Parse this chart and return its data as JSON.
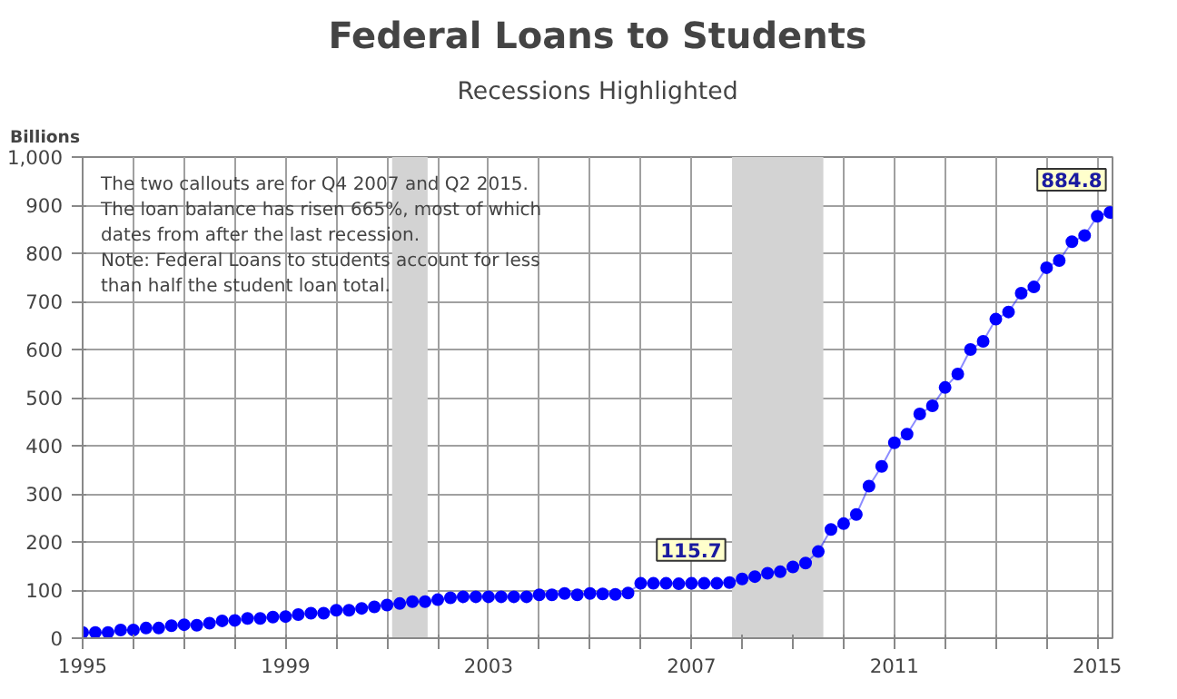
{
  "chart_data": {
    "type": "line",
    "title": "Federal Loans to Students",
    "subtitle": "Recessions Highlighted",
    "ylabel": "Billions",
    "annotations": [
      "The two callouts are for Q4 2007 and Q2 2015.\nThe loan balance has risen 665%, most of which\ndates from after the last recession.\nNote: Federal Loans to students account for less\nthan half the student loan total."
    ],
    "x": [
      1995.0,
      1995.25,
      1995.5,
      1995.75,
      1996.0,
      1996.25,
      1996.5,
      1996.75,
      1997.0,
      1997.25,
      1997.5,
      1997.75,
      1998.0,
      1998.25,
      1998.5,
      1998.75,
      1999.0,
      1999.25,
      1999.5,
      1999.75,
      2000.0,
      2000.25,
      2000.5,
      2000.75,
      2001.0,
      2001.25,
      2001.5,
      2001.75,
      2002.0,
      2002.25,
      2002.5,
      2002.75,
      2003.0,
      2003.25,
      2003.5,
      2003.75,
      2004.0,
      2004.25,
      2004.5,
      2004.75,
      2005.0,
      2005.25,
      2005.5,
      2005.75,
      2006.0,
      2006.25,
      2006.5,
      2006.75,
      2007.0,
      2007.25,
      2007.5,
      2007.75,
      2008.0,
      2008.25,
      2008.5,
      2008.75,
      2009.0,
      2009.25,
      2009.5,
      2009.75,
      2010.0,
      2010.25,
      2010.5,
      2010.75,
      2011.0,
      2011.25,
      2011.5,
      2011.75,
      2012.0,
      2012.25,
      2012.5,
      2012.75,
      2013.0,
      2013.25,
      2013.5,
      2013.75,
      2014.0,
      2014.25,
      2014.5,
      2014.75,
      2015.0,
      2015.25
    ],
    "series": [
      {
        "color": "#0000ff",
        "values": [
          12,
          12,
          12,
          17,
          17,
          21,
          21,
          26,
          28,
          27,
          31,
          36,
          37,
          41,
          41,
          44,
          45,
          49,
          52,
          52,
          58,
          58,
          62,
          65,
          69,
          72,
          76,
          76,
          80,
          84,
          86,
          86,
          86,
          86,
          86,
          86,
          90,
          90,
          93,
          90,
          93,
          92,
          91,
          94,
          114,
          114,
          114,
          113,
          114,
          114,
          114,
          115.7,
          123,
          128,
          135,
          138,
          148,
          156,
          180,
          226,
          238,
          257,
          316,
          357,
          406,
          424,
          466,
          483,
          521,
          549,
          600,
          617,
          663,
          678,
          717,
          730,
          770,
          785,
          824,
          837,
          877,
          884.8
        ],
        "value_labels": [
          null,
          null,
          null,
          null,
          null,
          null,
          null,
          null,
          null,
          null,
          null,
          null,
          null,
          null,
          null,
          null,
          null,
          null,
          null,
          null,
          null,
          null,
          null,
          null,
          null,
          null,
          null,
          null,
          null,
          null,
          null,
          null,
          null,
          null,
          null,
          null,
          null,
          null,
          null,
          null,
          null,
          null,
          null,
          null,
          null,
          null,
          null,
          null,
          null,
          null,
          null,
          "115.7",
          null,
          null,
          null,
          null,
          null,
          null,
          null,
          null,
          null,
          null,
          null,
          null,
          null,
          null,
          null,
          null,
          null,
          null,
          null,
          null,
          null,
          null,
          null,
          null,
          null,
          null,
          null,
          null,
          null,
          "884.8"
        ]
      }
    ],
    "marker": "circle",
    "bands": [
      {
        "axis": "x",
        "from": 2001.1,
        "to": 2001.8,
        "color": "#d3d3d3"
      },
      {
        "axis": "x",
        "from": 2007.8,
        "to": 2009.6,
        "color": "#d3d3d3"
      }
    ],
    "xlim": [
      1995,
      2015.3
    ],
    "ylim": [
      0,
      1000
    ],
    "xticks": [
      1995,
      {
        "value": 1996,
        "label": null
      },
      {
        "value": 1997,
        "label": null
      },
      {
        "value": 1998,
        "label": null
      },
      1999,
      {
        "value": 2000,
        "label": null
      },
      {
        "value": 2001,
        "label": null
      },
      {
        "value": 2002,
        "label": null
      },
      2003,
      {
        "value": 2004,
        "label": null
      },
      {
        "value": 2005,
        "label": null
      },
      {
        "value": 2006,
        "label": null
      },
      2007,
      {
        "value": 2008,
        "label": null
      },
      {
        "value": 2009,
        "label": null
      },
      {
        "value": 2010,
        "label": null
      },
      2011,
      {
        "value": 2012,
        "label": null
      },
      {
        "value": 2013,
        "label": null
      },
      {
        "value": 2014,
        "label": null
      },
      2015
    ],
    "yticks": [
      0,
      100,
      200,
      300,
      400,
      500,
      600,
      700,
      800,
      900,
      {
        "value": 1000,
        "label": "1,000"
      }
    ],
    "grid": true
  }
}
